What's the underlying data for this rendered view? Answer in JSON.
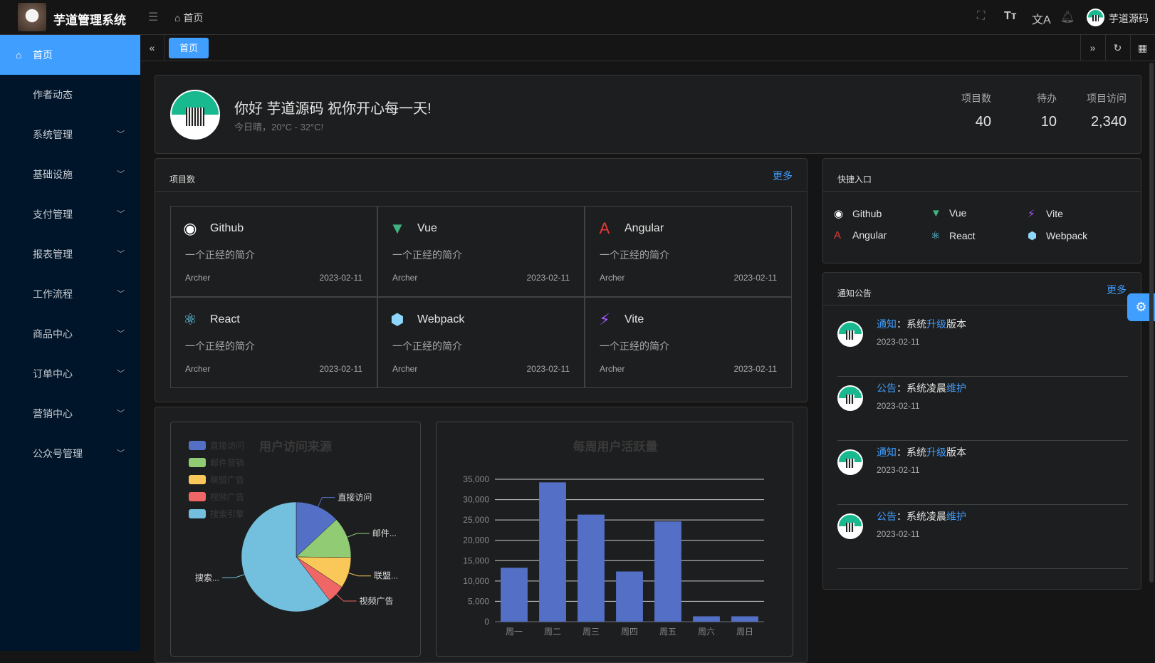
{
  "header": {
    "app_title": "芋道管理系统",
    "breadcrumb": "首页",
    "user_name": "芋道源码",
    "icons": [
      "fullscreen-icon",
      "font-size-icon",
      "translate-icon",
      "bell-icon"
    ]
  },
  "sidebar": {
    "items": [
      {
        "label": "首页",
        "active": true,
        "expandable": false
      },
      {
        "label": "作者动态",
        "expandable": false
      },
      {
        "label": "系统管理",
        "expandable": true
      },
      {
        "label": "基础设施",
        "expandable": true
      },
      {
        "label": "支付管理",
        "expandable": true
      },
      {
        "label": "报表管理",
        "expandable": true
      },
      {
        "label": "工作流程",
        "expandable": true
      },
      {
        "label": "商品中心",
        "expandable": true
      },
      {
        "label": "订单中心",
        "expandable": true
      },
      {
        "label": "营销中心",
        "expandable": true
      },
      {
        "label": "公众号管理",
        "expandable": true
      }
    ]
  },
  "tabs": {
    "items": [
      {
        "label": "首页",
        "active": true
      }
    ]
  },
  "welcome": {
    "greeting": "你好 芋道源码 祝你开心每一天!",
    "weather": "今日晴，20°C - 32°C!",
    "stats": [
      {
        "label": "项目数",
        "value": "40"
      },
      {
        "label": "待办",
        "value": "10"
      },
      {
        "label": "项目访问",
        "value": "2,340"
      }
    ]
  },
  "projects": {
    "title": "项目数",
    "more": "更多",
    "items": [
      {
        "name": "Github",
        "icon": "github-icon",
        "color": "#ffffff",
        "desc": "一个正经的简介",
        "author": "Archer",
        "date": "2023-02-11"
      },
      {
        "name": "Vue",
        "icon": "vue-icon",
        "color": "#3fb27f",
        "desc": "一个正经的简介",
        "author": "Archer",
        "date": "2023-02-11"
      },
      {
        "name": "Angular",
        "icon": "angular-icon",
        "color": "#e53935",
        "desc": "一个正经的简介",
        "author": "Archer",
        "date": "2023-02-11"
      },
      {
        "name": "React",
        "icon": "react-icon",
        "color": "#61dafb",
        "desc": "一个正经的简介",
        "author": "Archer",
        "date": "2023-02-11"
      },
      {
        "name": "Webpack",
        "icon": "webpack-icon",
        "color": "#8ed6fb",
        "desc": "一个正经的简介",
        "author": "Archer",
        "date": "2023-02-11"
      },
      {
        "name": "Vite",
        "icon": "vite-icon",
        "color": "#a259ff",
        "desc": "一个正经的简介",
        "author": "Archer",
        "date": "2023-02-11"
      }
    ]
  },
  "quick_entry": {
    "title": "快捷入口",
    "items": [
      {
        "name": "Github",
        "icon": "github-icon",
        "color": "#ffffff"
      },
      {
        "name": "Vue",
        "icon": "vue-icon",
        "color": "#3fb27f"
      },
      {
        "name": "Vite",
        "icon": "vite-icon",
        "color": "#a259ff"
      },
      {
        "name": "Angular",
        "icon": "angular-icon",
        "color": "#e53935"
      },
      {
        "name": "React",
        "icon": "react-icon",
        "color": "#61dafb"
      },
      {
        "name": "Webpack",
        "icon": "webpack-icon",
        "color": "#8ed6fb"
      }
    ]
  },
  "notices": {
    "title": "通知公告",
    "more": "更多",
    "items": [
      {
        "type": "通知",
        "sep": "：",
        "pre": "系统",
        "hl": "升级",
        "post": "版本",
        "date": "2023-02-11"
      },
      {
        "type": "公告",
        "sep": "：",
        "pre": "系统凌晨",
        "hl": "维护",
        "post": "",
        "date": "2023-02-11"
      },
      {
        "type": "通知",
        "sep": "：",
        "pre": "系统",
        "hl": "升级",
        "post": "版本",
        "date": "2023-02-11"
      },
      {
        "type": "公告",
        "sep": "：",
        "pre": "系统凌晨",
        "hl": "维护",
        "post": "",
        "date": "2023-02-11"
      }
    ]
  },
  "chart_data": [
    {
      "type": "pie",
      "title": "用户访问来源",
      "legend": "top-left",
      "categories": [
        "直接访问",
        "邮件营销",
        "联盟广告",
        "视频广告",
        "搜索引擎"
      ],
      "slice_labels": [
        "直接访问",
        "邮件...",
        "联盟...",
        "视频广告",
        "搜索..."
      ],
      "values": [
        335,
        310,
        234,
        135,
        1548
      ],
      "colors": [
        "#5470c6",
        "#91cc75",
        "#fac858",
        "#ee6666",
        "#73c0de"
      ]
    },
    {
      "type": "bar",
      "title": "每周用户活跃量",
      "categories": [
        "周一",
        "周二",
        "周三",
        "周四",
        "周五",
        "周六",
        "周日"
      ],
      "values": [
        13253,
        34235,
        26321,
        12340,
        24643,
        1322,
        1324
      ],
      "ylim": [
        0,
        35000
      ],
      "yticks": [
        "0",
        "5,000",
        "10,000",
        "15,000",
        "20,000",
        "25,000",
        "30,000",
        "35,000"
      ],
      "grid": true,
      "color": "#5470c6"
    }
  ]
}
